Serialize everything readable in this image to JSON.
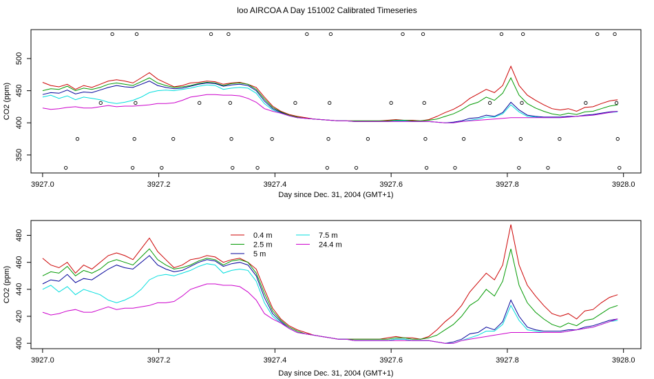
{
  "title": "loo AIRCOA A  Day 151002  Calibrated Timeseries",
  "chart_data": [
    {
      "type": "scatter",
      "xlabel": "Day since Dec. 31, 2004 (GMT+1)",
      "ylabel": "CO2 (ppm)",
      "xlim": [
        3926.98,
        3928.03
      ],
      "ylim": [
        322,
        545
      ],
      "xticks": [
        "3927.0",
        "3927.2",
        "3927.4",
        "3927.6",
        "3927.8",
        "3928.0"
      ],
      "yticks": [
        "350",
        "400",
        "450",
        "500"
      ],
      "grid": false,
      "marker_points": [
        [
          3927.04,
          330
        ],
        [
          3927.06,
          375
        ],
        [
          3927.1,
          431
        ],
        [
          3927.12,
          538
        ],
        [
          3927.155,
          330
        ],
        [
          3927.158,
          375
        ],
        [
          3927.16,
          431
        ],
        [
          3927.162,
          538
        ],
        [
          3927.205,
          330
        ],
        [
          3927.225,
          375
        ],
        [
          3927.27,
          431
        ],
        [
          3927.29,
          538
        ],
        [
          3927.32,
          538
        ],
        [
          3927.323,
          431
        ],
        [
          3927.325,
          375
        ],
        [
          3927.327,
          330
        ],
        [
          3927.37,
          330
        ],
        [
          3927.395,
          375
        ],
        [
          3927.435,
          431
        ],
        [
          3927.455,
          538
        ],
        [
          3927.49,
          330
        ],
        [
          3927.492,
          375
        ],
        [
          3927.494,
          431
        ],
        [
          3927.496,
          538
        ],
        [
          3927.54,
          330
        ],
        [
          3927.56,
          375
        ],
        [
          3927.6,
          431
        ],
        [
          3927.62,
          538
        ],
        [
          3927.655,
          538
        ],
        [
          3927.657,
          431
        ],
        [
          3927.659,
          375
        ],
        [
          3927.661,
          330
        ],
        [
          3927.71,
          330
        ],
        [
          3927.725,
          375
        ],
        [
          3927.77,
          431
        ],
        [
          3927.79,
          538
        ],
        [
          3927.82,
          330
        ],
        [
          3927.823,
          375
        ],
        [
          3927.825,
          431
        ],
        [
          3927.827,
          538
        ],
        [
          3927.87,
          330
        ],
        [
          3927.89,
          375
        ],
        [
          3927.935,
          431
        ],
        [
          3927.955,
          538
        ],
        [
          3927.985,
          538
        ],
        [
          3927.988,
          431
        ],
        [
          3927.99,
          375
        ],
        [
          3927.993,
          330
        ]
      ],
      "series": [
        {
          "name": "0.4 m",
          "color": "#cc0000",
          "values": [
            463,
            458,
            456,
            460,
            452,
            458,
            455,
            460,
            465,
            467,
            465,
            462,
            470,
            478,
            468,
            462,
            456,
            458,
            462,
            463,
            465,
            464,
            460,
            462,
            463,
            460,
            455,
            440,
            426,
            418,
            413,
            410,
            408,
            406,
            405,
            404,
            403,
            403,
            403,
            403,
            403,
            403,
            404,
            405,
            404,
            404,
            403,
            405,
            410,
            416,
            421,
            428,
            438,
            445,
            452,
            447,
            458,
            488,
            458,
            443,
            435,
            428,
            422,
            420,
            422,
            418,
            424,
            425,
            430,
            434,
            436
          ]
        },
        {
          "name": "2.5 m",
          "color": "#009900",
          "values": [
            450,
            453,
            452,
            457,
            450,
            454,
            452,
            455,
            460,
            462,
            460,
            458,
            464,
            470,
            462,
            458,
            455,
            456,
            458,
            461,
            463,
            462,
            458,
            461,
            462,
            460,
            452,
            437,
            424,
            417,
            412,
            409,
            407,
            406,
            405,
            404,
            403,
            403,
            403,
            403,
            403,
            403,
            403,
            404,
            404,
            403,
            403,
            404,
            406,
            410,
            414,
            420,
            428,
            432,
            440,
            435,
            446,
            470,
            443,
            430,
            423,
            418,
            414,
            412,
            415,
            413,
            417,
            418,
            422,
            426,
            428
          ]
        },
        {
          "name": "5 m",
          "color": "#000099",
          "values": [
            444,
            447,
            446,
            451,
            445,
            448,
            447,
            451,
            455,
            458,
            456,
            455,
            460,
            465,
            458,
            455,
            453,
            454,
            457,
            460,
            462,
            461,
            457,
            459,
            460,
            458,
            450,
            434,
            422,
            416,
            411,
            408,
            407,
            406,
            405,
            404,
            403,
            403,
            402,
            402,
            402,
            402,
            402,
            403,
            403,
            402,
            402,
            402,
            401,
            400,
            401,
            403,
            407,
            408,
            412,
            410,
            416,
            432,
            420,
            412,
            410,
            409,
            409,
            409,
            410,
            410,
            412,
            413,
            415,
            417,
            418
          ]
        },
        {
          "name": "7.5 m",
          "color": "#00dddd",
          "values": [
            440,
            443,
            438,
            442,
            436,
            440,
            438,
            436,
            432,
            430,
            432,
            435,
            440,
            447,
            450,
            451,
            450,
            452,
            454,
            457,
            459,
            458,
            452,
            454,
            455,
            454,
            446,
            430,
            420,
            415,
            411,
            408,
            407,
            406,
            405,
            404,
            403,
            403,
            402,
            402,
            402,
            402,
            402,
            403,
            403,
            402,
            402,
            402,
            401,
            400,
            400,
            402,
            404,
            406,
            409,
            409,
            414,
            428,
            417,
            410,
            409,
            408,
            408,
            408,
            409,
            410,
            411,
            412,
            414,
            416,
            417
          ]
        },
        {
          "name": "24.4 m",
          "color": "#cc00cc",
          "values": [
            423,
            421,
            422,
            424,
            425,
            423,
            423,
            425,
            427,
            425,
            426,
            426,
            427,
            428,
            430,
            430,
            431,
            435,
            440,
            442,
            444,
            444,
            443,
            443,
            442,
            438,
            432,
            422,
            418,
            415,
            411,
            408,
            407,
            406,
            405,
            404,
            403,
            403,
            402,
            402,
            402,
            402,
            402,
            402,
            402,
            402,
            402,
            402,
            401,
            400,
            400,
            402,
            403,
            404,
            405,
            406,
            407,
            408,
            408,
            408,
            408,
            408,
            408,
            408,
            409,
            410,
            411,
            412,
            414,
            416,
            418
          ]
        }
      ]
    },
    {
      "type": "line",
      "xlabel": "Day since Dec. 31, 2004 (GMT+1)",
      "ylabel": "CO2 (ppm)",
      "xlim": [
        3926.98,
        3928.03
      ],
      "ylim": [
        396,
        491
      ],
      "xticks": [
        "3927.0",
        "3927.2",
        "3927.4",
        "3927.6",
        "3927.8",
        "3928.0"
      ],
      "yticks": [
        "400",
        "420",
        "440",
        "460",
        "480"
      ],
      "grid": false,
      "legend_position": "top-center",
      "legend": [
        "0.4 m",
        "2.5 m",
        "5 m",
        "7.5 m",
        "24.4 m"
      ]
    }
  ]
}
